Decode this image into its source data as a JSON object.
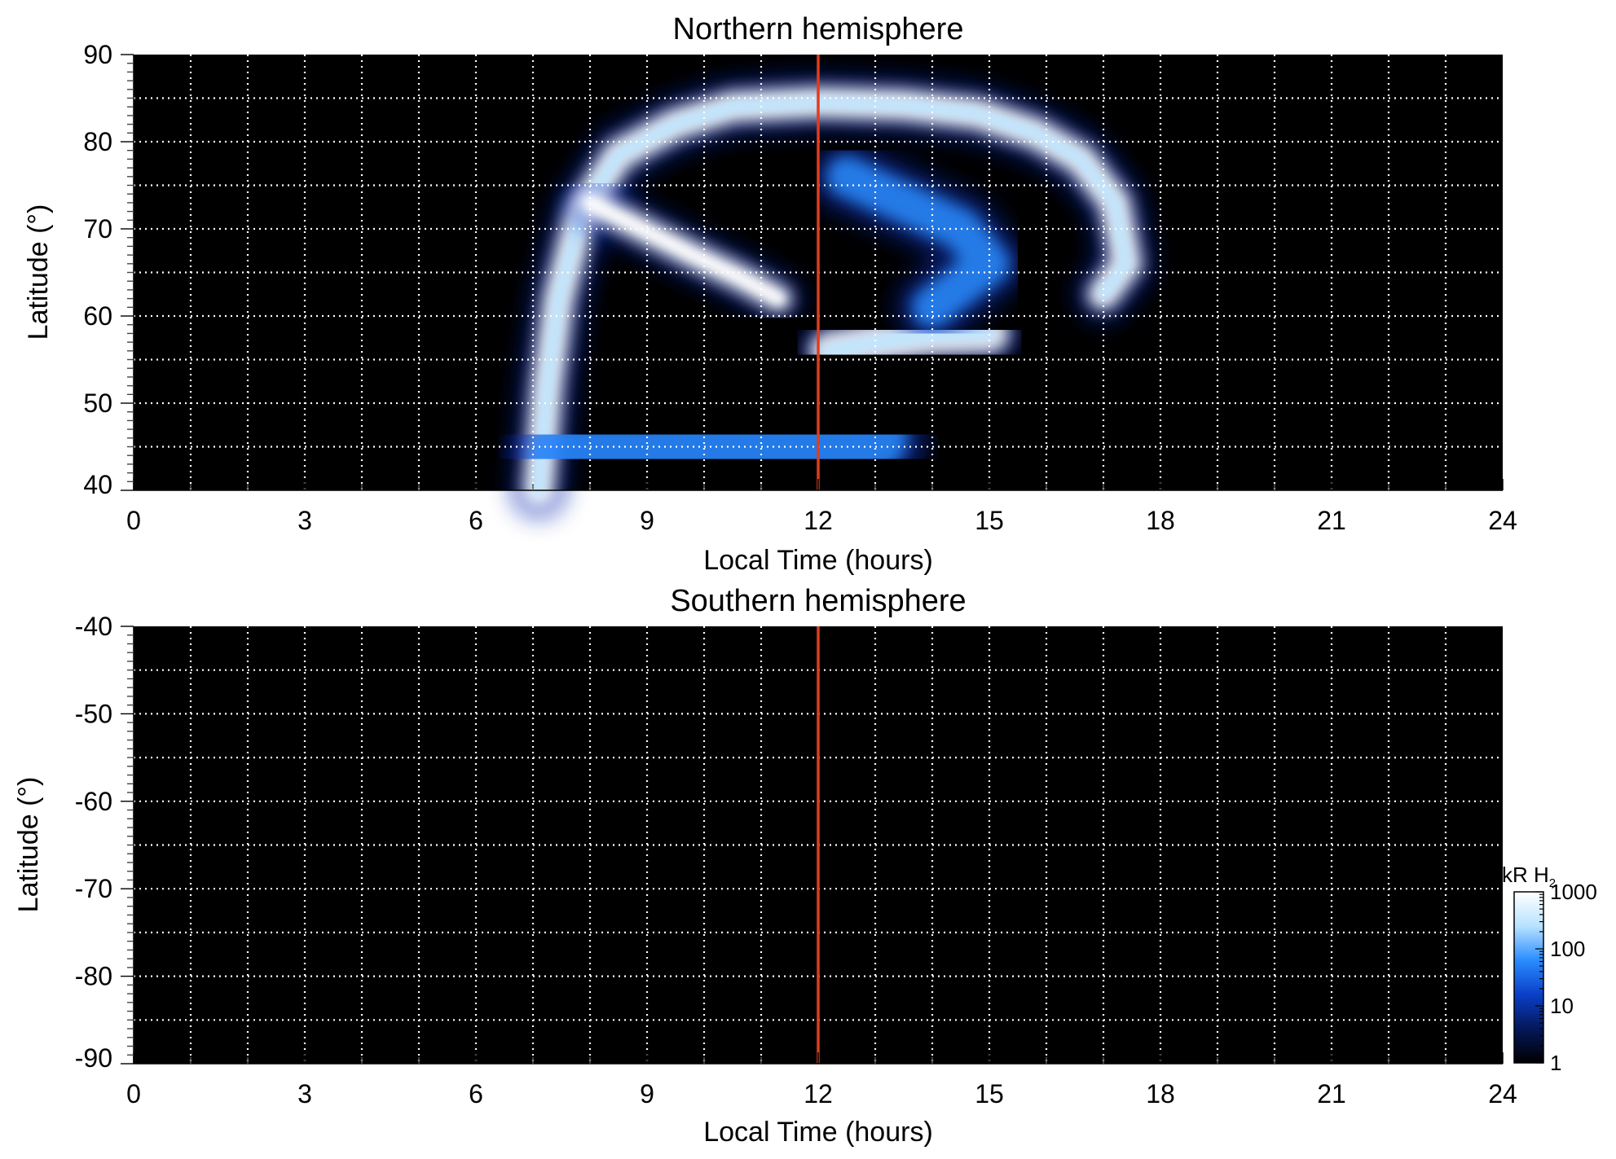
{
  "chart_data": [
    {
      "type": "heatmap",
      "title": "Northern hemisphere",
      "xlabel": "Local Time (hours)",
      "ylabel": "Latitude (°)",
      "xlim": [
        0,
        24
      ],
      "ylim": [
        40,
        90
      ],
      "x_ticks": [
        0,
        3,
        6,
        9,
        12,
        15,
        18,
        21,
        24
      ],
      "y_ticks": [
        40,
        50,
        60,
        70,
        80,
        90
      ],
      "grid": true,
      "noon_marker": {
        "x": 12,
        "color": "#e03c1e"
      },
      "background": "#000000",
      "features": [
        {
          "kind": "main-oval-arc",
          "points": [
            [
              7.1,
              40
            ],
            [
              7.25,
              52
            ],
            [
              7.45,
              62
            ],
            [
              7.85,
              72
            ],
            [
              8.5,
              78.5
            ],
            [
              9.5,
              82
            ],
            [
              10.5,
              84
            ],
            [
              12,
              84.5
            ],
            [
              13.5,
              84.2
            ],
            [
              14.8,
              83.2
            ],
            [
              15.8,
              81
            ],
            [
              16.6,
              78
            ],
            [
              17.2,
              73
            ],
            [
              17.4,
              66
            ],
            [
              17.0,
              62.5
            ]
          ],
          "intensity_kR": 300
        },
        {
          "kind": "dawn-arc",
          "points": [
            [
              8.0,
              73
            ],
            [
              8.9,
              70
            ],
            [
              9.8,
              67
            ],
            [
              10.6,
              64.5
            ],
            [
              11.3,
              62
            ]
          ],
          "intensity_kR": 800
        },
        {
          "kind": "noon-patch",
          "points": [
            [
              12.2,
              56
            ],
            [
              13.0,
              57
            ],
            [
              14.0,
              57.8
            ],
            [
              15.0,
              58
            ]
          ],
          "intensity_kR": 400
        },
        {
          "kind": "polar-cap-emission",
          "points": [
            [
              12.5,
              76
            ],
            [
              13.5,
              73
            ],
            [
              14.5,
              70
            ],
            [
              15.0,
              66
            ],
            [
              14.0,
              61
            ]
          ],
          "intensity_kR": 60
        },
        {
          "kind": "equatorward-diffuse",
          "points": [
            [
              7.5,
              44
            ],
            [
              9.0,
              44
            ],
            [
              10.5,
              45
            ],
            [
              12.0,
              45
            ],
            [
              13.0,
              46
            ]
          ],
          "intensity_kR": 20
        }
      ]
    },
    {
      "type": "heatmap",
      "title": "Southern hemisphere",
      "xlabel": "Local Time (hours)",
      "ylabel": "Latitude (°)",
      "xlim": [
        0,
        24
      ],
      "ylim": [
        -90,
        -40
      ],
      "x_ticks": [
        0,
        3,
        6,
        9,
        12,
        15,
        18,
        21,
        24
      ],
      "y_ticks": [
        -40,
        -50,
        -60,
        -70,
        -80,
        -90
      ],
      "grid": true,
      "noon_marker": {
        "x": 12,
        "color": "#e03c1e"
      },
      "background": "#000000",
      "features": []
    }
  ],
  "colorbar": {
    "label_main": "kR H",
    "label_sub": "2",
    "scale": "log",
    "range": [
      1,
      1000
    ],
    "ticks": [
      1,
      10,
      100,
      1000
    ],
    "stops": [
      "#000000",
      "#04185a",
      "#0a3fc8",
      "#2a8cff",
      "#b8e2ff",
      "#ffffff"
    ]
  }
}
